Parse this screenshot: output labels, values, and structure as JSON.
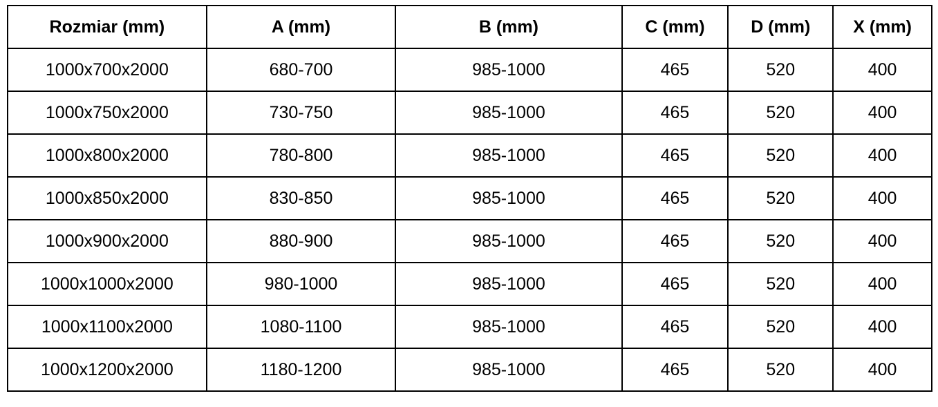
{
  "table": {
    "headers": [
      "Rozmiar (mm)",
      "A (mm)",
      "B (mm)",
      "C (mm)",
      "D (mm)",
      "X (mm)"
    ],
    "rows": [
      [
        "1000x700x2000",
        "680-700",
        "985-1000",
        "465",
        "520",
        "400"
      ],
      [
        "1000x750x2000",
        "730-750",
        "985-1000",
        "465",
        "520",
        "400"
      ],
      [
        "1000x800x2000",
        "780-800",
        "985-1000",
        "465",
        "520",
        "400"
      ],
      [
        "1000x850x2000",
        "830-850",
        "985-1000",
        "465",
        "520",
        "400"
      ],
      [
        "1000x900x2000",
        "880-900",
        "985-1000",
        "465",
        "520",
        "400"
      ],
      [
        "1000x1000x2000",
        "980-1000",
        "985-1000",
        "465",
        "520",
        "400"
      ],
      [
        "1000x1100x2000",
        "1080-1100",
        "985-1000",
        "465",
        "520",
        "400"
      ],
      [
        "1000x1200x2000",
        "1180-1200",
        "985-1000",
        "465",
        "520",
        "400"
      ]
    ]
  }
}
